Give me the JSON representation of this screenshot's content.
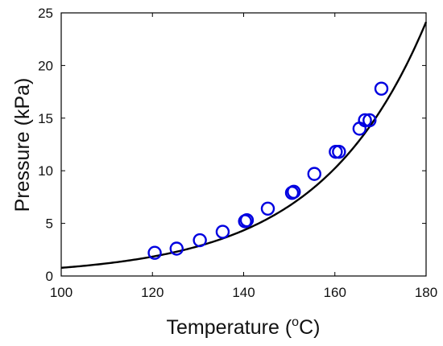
{
  "chart_data": {
    "type": "scatter",
    "xlabel": "Temperature (",
    "xlabel_sup": "o",
    "xlabel_end": "C)",
    "ylabel": "Pressure (kPa)",
    "xlim": [
      100,
      180
    ],
    "ylim": [
      0,
      25
    ],
    "x_ticks": [
      "100",
      "120",
      "140",
      "160",
      "180"
    ],
    "y_ticks": [
      "0",
      "5",
      "10",
      "15",
      "20",
      "25"
    ],
    "grid": false,
    "legend": "none",
    "series": [
      {
        "kind": "scatter",
        "marker": "open-circle",
        "color": "#0000e0",
        "points": [
          [
            120.5,
            2.2
          ],
          [
            125.3,
            2.6
          ],
          [
            130.4,
            3.4
          ],
          [
            135.4,
            4.2
          ],
          [
            140.3,
            5.2
          ],
          [
            140.7,
            5.3
          ],
          [
            145.3,
            6.4
          ],
          [
            150.6,
            7.9
          ],
          [
            151.0,
            8.0
          ],
          [
            155.5,
            9.7
          ],
          [
            160.2,
            11.8
          ],
          [
            160.9,
            11.8
          ],
          [
            165.4,
            14.0
          ],
          [
            166.6,
            14.8
          ],
          [
            167.6,
            14.8
          ],
          [
            170.2,
            17.8
          ]
        ]
      },
      {
        "kind": "line",
        "color": "#000000",
        "fit": {
          "model": "exponential",
          "a": 0.78,
          "b": 0.0429,
          "x0": 100
        }
      }
    ]
  }
}
